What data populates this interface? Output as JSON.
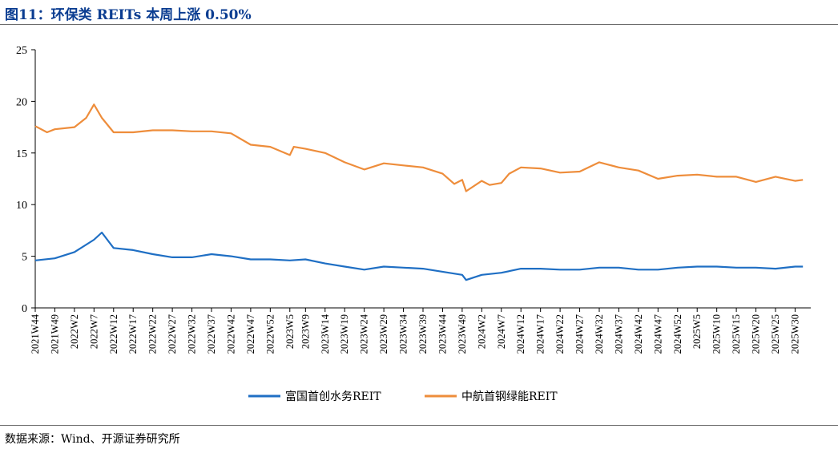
{
  "header": {
    "title": "图11：环保类 REITs 本周上涨 0.50%"
  },
  "footer": {
    "source": "数据来源：Wind、开源证券研究所"
  },
  "colors": {
    "series1": "#1f6fc4",
    "series2": "#ee8d3b",
    "title": "#0b3d91"
  },
  "chart_data": {
    "type": "line",
    "title": "",
    "xlabel": "",
    "ylabel": "",
    "ylim": [
      0,
      25
    ],
    "yticks": [
      0,
      5,
      10,
      15,
      20,
      25
    ],
    "grid": false,
    "legend": "bottom",
    "xticks": [
      "2021W44",
      "2021W49",
      "2022W2",
      "2022W7",
      "2022W12",
      "2022W17",
      "2022W22",
      "2022W27",
      "2022W32",
      "2022W37",
      "2022W42",
      "2022W47",
      "2022W52",
      "2023W5",
      "2023W9",
      "2023W14",
      "2023W19",
      "2023W24",
      "2023W29",
      "2023W34",
      "2023W39",
      "2023W44",
      "2023W49",
      "2024W2",
      "2024W7",
      "2024W12",
      "2024W17",
      "2024W22",
      "2024W27",
      "2024W32",
      "2024W37",
      "2024W42",
      "2024W47",
      "2024W52",
      "2025W5",
      "2025W10",
      "2025W15",
      "2025W20",
      "2025W25",
      "2025W30"
    ],
    "series": [
      {
        "name": "富国首创水务REIT",
        "color": "#1f6fc4",
        "x": [
          "2021W44",
          "2021W49",
          "2022W2",
          "2022W7",
          "2022W9",
          "2022W12",
          "2022W17",
          "2022W22",
          "2022W27",
          "2022W32",
          "2022W37",
          "2022W42",
          "2022W47",
          "2022W52",
          "2023W5",
          "2023W9",
          "2023W14",
          "2023W19",
          "2023W24",
          "2023W29",
          "2023W34",
          "2023W39",
          "2023W44",
          "2023W49",
          "2023W50",
          "2024W2",
          "2024W7",
          "2024W12",
          "2024W17",
          "2024W22",
          "2024W27",
          "2024W32",
          "2024W37",
          "2024W42",
          "2024W47",
          "2024W52",
          "2025W5",
          "2025W10",
          "2025W15",
          "2025W20",
          "2025W25",
          "2025W30",
          "2025W32"
        ],
        "values": [
          4.6,
          4.8,
          5.4,
          6.6,
          7.3,
          5.8,
          5.6,
          5.2,
          4.9,
          4.9,
          5.2,
          5.0,
          4.7,
          4.7,
          4.6,
          4.7,
          4.3,
          4.0,
          3.7,
          4.0,
          3.9,
          3.8,
          3.5,
          3.2,
          2.7,
          3.2,
          3.4,
          3.8,
          3.8,
          3.7,
          3.7,
          3.9,
          3.9,
          3.7,
          3.7,
          3.9,
          4.0,
          4.0,
          3.9,
          3.9,
          3.8,
          4.0,
          4.0
        ]
      },
      {
        "name": "中航首钢绿能REIT",
        "color": "#ee8d3b",
        "x": [
          "2021W44",
          "2021W47",
          "2021W49",
          "2022W2",
          "2022W5",
          "2022W7",
          "2022W9",
          "2022W12",
          "2022W17",
          "2022W22",
          "2022W27",
          "2022W32",
          "2022W37",
          "2022W42",
          "2022W47",
          "2022W52",
          "2023W5",
          "2023W6",
          "2023W9",
          "2023W14",
          "2023W19",
          "2023W24",
          "2023W29",
          "2023W34",
          "2023W39",
          "2023W44",
          "2023W47",
          "2023W49",
          "2023W50",
          "2024W2",
          "2024W4",
          "2024W7",
          "2024W9",
          "2024W12",
          "2024W17",
          "2024W22",
          "2024W27",
          "2024W32",
          "2024W37",
          "2024W42",
          "2024W47",
          "2024W52",
          "2025W5",
          "2025W10",
          "2025W15",
          "2025W20",
          "2025W25",
          "2025W30",
          "2025W32"
        ],
        "values": [
          17.6,
          17.0,
          17.3,
          17.5,
          18.4,
          19.7,
          18.4,
          17.0,
          17.0,
          17.2,
          17.2,
          17.1,
          17.1,
          16.9,
          15.8,
          15.6,
          14.8,
          15.6,
          15.4,
          15.0,
          14.1,
          13.4,
          14.0,
          13.8,
          13.6,
          13.0,
          12.0,
          12.4,
          11.3,
          12.3,
          11.9,
          12.1,
          13.0,
          13.6,
          13.5,
          13.1,
          13.2,
          14.1,
          13.6,
          13.3,
          12.5,
          12.8,
          12.9,
          12.7,
          12.7,
          12.2,
          12.7,
          12.3,
          12.4
        ]
      }
    ]
  }
}
